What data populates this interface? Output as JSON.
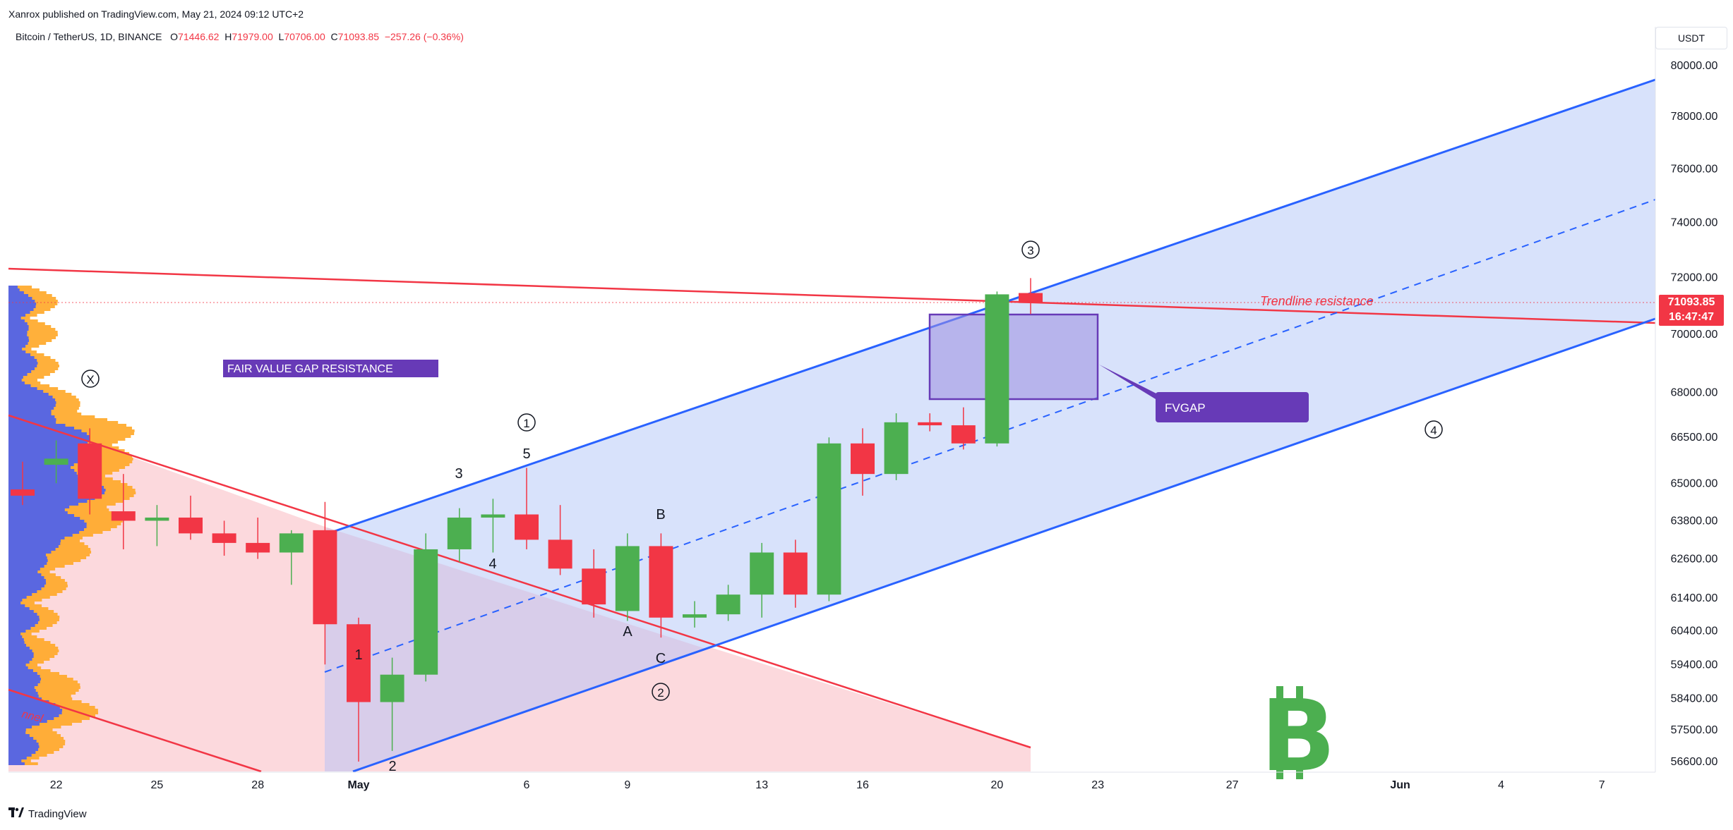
{
  "header": {
    "published": "Xanrox published on TradingView.com, May 21, 2024 09:12 UTC+2"
  },
  "legend": {
    "symbol": "Bitcoin / TetherUS, 1D, BINANCE",
    "o_label": "O",
    "o": "71446.62",
    "h_label": "H",
    "h": "71979.00",
    "l_label": "L",
    "l": "70706.00",
    "c_label": "C",
    "c": "71093.85",
    "change": "−257.26 (−0.36%)"
  },
  "price_axis": {
    "currency": "USDT"
  },
  "last_price": {
    "price": "71093.85",
    "countdown": "16:47:47"
  },
  "footer": {
    "brand": "TradingView"
  },
  "colors": {
    "up": "#4caf50",
    "down": "#f23645",
    "channel": "#2962ff",
    "channel_fill": "#d6e0fb",
    "fvg": "#673ab7",
    "pink_fill": "#fcd9dd",
    "bitcoin_logo": "#4caf50"
  },
  "chart_data": {
    "type": "candlestick",
    "symbol": "Bitcoin / TetherUS",
    "interval": "1D",
    "exchange": "BINANCE",
    "y_ticks": [
      "80000.00",
      "78000.00",
      "76000.00",
      "74000.00",
      "72000.00",
      "70000.00",
      "68000.00",
      "66500.00",
      "65000.00",
      "63800.00",
      "62600.00",
      "61400.00",
      "60400.00",
      "59400.00",
      "58400.00",
      "57500.00",
      "56600.00"
    ],
    "y_log": true,
    "x_ticks": [
      {
        "label": "22",
        "day": -9
      },
      {
        "label": "25",
        "day": -6
      },
      {
        "label": "28",
        "day": -3
      },
      {
        "label": "May",
        "day": 0
      },
      {
        "label": "6",
        "day": 5
      },
      {
        "label": "9",
        "day": 8
      },
      {
        "label": "13",
        "day": 12
      },
      {
        "label": "16",
        "day": 15
      },
      {
        "label": "20",
        "day": 19
      },
      {
        "label": "23",
        "day": 22
      },
      {
        "label": "27",
        "day": 26
      },
      {
        "label": "Jun",
        "day": 31
      },
      {
        "label": "4",
        "day": 34
      },
      {
        "label": "7",
        "day": 37
      }
    ],
    "candles": [
      {
        "day": -10,
        "o": 64800,
        "h": 65700,
        "l": 64300,
        "c": 64600
      },
      {
        "day": -9,
        "o": 65600,
        "h": 66400,
        "l": 65000,
        "c": 65800
      },
      {
        "day": -8,
        "o": 66300,
        "h": 66800,
        "l": 64000,
        "c": 64500
      },
      {
        "day": -7,
        "o": 64100,
        "h": 65300,
        "l": 62900,
        "c": 63800
      },
      {
        "day": -6,
        "o": 63800,
        "h": 64300,
        "l": 63000,
        "c": 63900
      },
      {
        "day": -5,
        "o": 63900,
        "h": 64600,
        "l": 63200,
        "c": 63400
      },
      {
        "day": -4,
        "o": 63400,
        "h": 63800,
        "l": 62700,
        "c": 63100
      },
      {
        "day": -3,
        "o": 63100,
        "h": 63900,
        "l": 62600,
        "c": 62800
      },
      {
        "day": -2,
        "o": 62800,
        "h": 63500,
        "l": 61800,
        "c": 63400
      },
      {
        "day": -1,
        "o": 63500,
        "h": 64400,
        "l": 59400,
        "c": 60600
      },
      {
        "day": 0,
        "o": 60600,
        "h": 60800,
        "l": 56600,
        "c": 58300
      },
      {
        "day": 1,
        "o": 58300,
        "h": 59600,
        "l": 56900,
        "c": 59100
      },
      {
        "day": 2,
        "o": 59100,
        "h": 63400,
        "l": 58900,
        "c": 62900
      },
      {
        "day": 3,
        "o": 62900,
        "h": 64200,
        "l": 62500,
        "c": 63900
      },
      {
        "day": 4,
        "o": 63900,
        "h": 64500,
        "l": 62800,
        "c": 64000
      },
      {
        "day": 5,
        "o": 64000,
        "h": 65500,
        "l": 62900,
        "c": 63200
      },
      {
        "day": 6,
        "o": 63200,
        "h": 64300,
        "l": 62100,
        "c": 62300
      },
      {
        "day": 7,
        "o": 62300,
        "h": 62900,
        "l": 60800,
        "c": 61200
      },
      {
        "day": 8,
        "o": 61000,
        "h": 63400,
        "l": 60700,
        "c": 63000
      },
      {
        "day": 9,
        "o": 63000,
        "h": 63400,
        "l": 60200,
        "c": 60800
      },
      {
        "day": 10,
        "o": 60800,
        "h": 61300,
        "l": 60500,
        "c": 60900
      },
      {
        "day": 11,
        "o": 60900,
        "h": 61800,
        "l": 60700,
        "c": 61500
      },
      {
        "day": 12,
        "o": 61500,
        "h": 63100,
        "l": 60800,
        "c": 62800
      },
      {
        "day": 13,
        "o": 62800,
        "h": 63200,
        "l": 61100,
        "c": 61500
      },
      {
        "day": 14,
        "o": 61500,
        "h": 66500,
        "l": 61300,
        "c": 66300
      },
      {
        "day": 15,
        "o": 66300,
        "h": 66800,
        "l": 64600,
        "c": 65300
      },
      {
        "day": 16,
        "o": 65300,
        "h": 67300,
        "l": 65100,
        "c": 67000
      },
      {
        "day": 17,
        "o": 67000,
        "h": 67300,
        "l": 66700,
        "c": 66900
      },
      {
        "day": 18,
        "o": 66900,
        "h": 67500,
        "l": 66100,
        "c": 66300
      },
      {
        "day": 19,
        "o": 66300,
        "h": 71500,
        "l": 66200,
        "c": 71400
      },
      {
        "day": 20,
        "o": 71446.62,
        "h": 71979,
        "l": 70706,
        "c": 71093.85
      }
    ],
    "annotations": [
      {
        "text": "FAIR VALUE GAP RESISTANCE"
      },
      {
        "text": "FVGAP"
      },
      {
        "text": "Trendline resistance"
      },
      {
        "text": "X"
      },
      {
        "text": "1"
      },
      {
        "text": "2"
      },
      {
        "text": "3"
      },
      {
        "text": "4"
      },
      {
        "text": "1"
      },
      {
        "text": "2"
      },
      {
        "text": "3"
      },
      {
        "text": "4"
      },
      {
        "text": "5"
      },
      {
        "text": "A"
      },
      {
        "text": "B"
      },
      {
        "text": "C"
      },
      {
        "text": "nnel"
      }
    ]
  }
}
